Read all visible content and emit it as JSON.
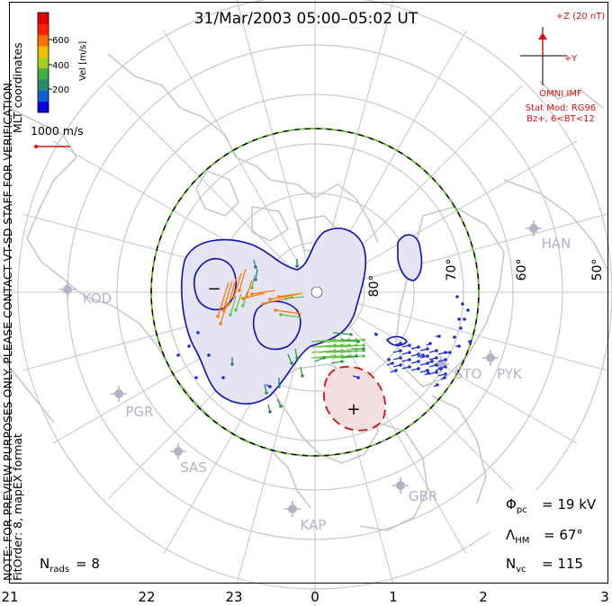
{
  "title": "31/Mar/2003 05:00–05:02 UT",
  "side_note": "NOTE: FOR PREVIEW PURPOSES ONLY. PLEASE CONTACT VT-SD STAFF FOR VERIFICATION.",
  "fit_order": "FitOrder: 8, mapEX format",
  "coord_label": "MLT coordinates",
  "colorbar": {
    "label": "Vel [m/s]",
    "ticks": [
      "600",
      "400",
      "200"
    ],
    "colors": [
      "#0000e0",
      "#1060d0",
      "#2a8a70",
      "#40b040",
      "#a0d020",
      "#f0c000",
      "#ff7000",
      "#ff2000",
      "#e00000"
    ]
  },
  "ref_vector": {
    "label": "1000 m/s",
    "color": "#e01010"
  },
  "imf": {
    "z_label": "+Z (20 nT)",
    "y_label": "+Y",
    "source": "OMNI IMF",
    "stat_mod": "Stat Mod: RG96",
    "bz": "Bz+, 6<BT<12",
    "color": "#e01010"
  },
  "lat_labels": [
    "80°",
    "70°",
    "60°",
    "50°"
  ],
  "mlt_labels": [
    "21",
    "22",
    "23",
    "0",
    "1",
    "2",
    "3"
  ],
  "stations": [
    "KOD",
    "PGR",
    "SAS",
    "KAP",
    "GBR",
    "STO",
    "PYK",
    "HAN"
  ],
  "potential_labels": {
    "min": "−",
    "max": "+"
  },
  "stats": {
    "phi_pc": "19 kV",
    "lambda_hm": "67°",
    "n_vc": "115",
    "n_rads": "8"
  },
  "colors": {
    "background": "#ffffff",
    "coastline": "#c8c8c8",
    "grid": "#c8c8c8",
    "negative_cell_fill": "#e4e4f4",
    "negative_cell_line": "#1010b0",
    "positive_cell_fill": "#f2dede",
    "positive_cell_line": "#d01010",
    "hm_boundary_line": "#000000",
    "hm_boundary_dash": "#60d020",
    "station_marker": "#b8b0c8"
  }
}
